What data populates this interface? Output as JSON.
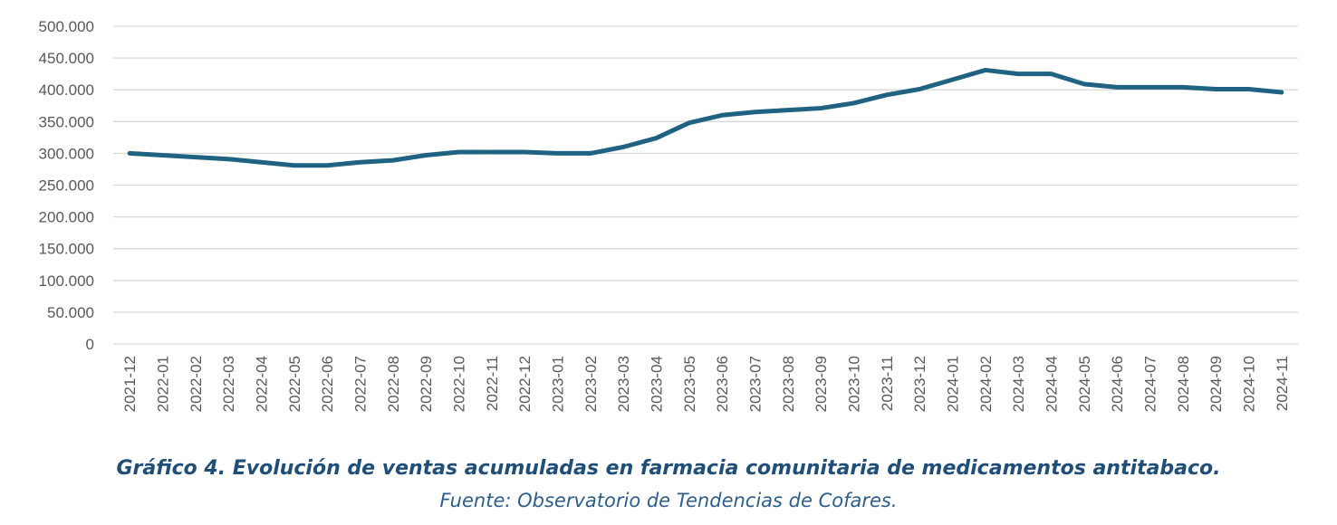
{
  "chart_data": {
    "type": "line",
    "categories": [
      "2021-12",
      "2022-01",
      "2022-02",
      "2022-03",
      "2022-04",
      "2022-05",
      "2022-06",
      "2022-07",
      "2022-08",
      "2022-09",
      "2022-10",
      "2022-11",
      "2022-12",
      "2023-01",
      "2023-02",
      "2023-03",
      "2023-04",
      "2023-05",
      "2023-06",
      "2023-07",
      "2023-08",
      "2023-09",
      "2023-10",
      "2023-11",
      "2023-12",
      "2024-01",
      "2024-02",
      "2024-03",
      "2024-04",
      "2024-05",
      "2024-06",
      "2024-07",
      "2024-08",
      "2024-09",
      "2024-10",
      "2024-11"
    ],
    "series": [
      {
        "values": [
          300000,
          297000,
          294000,
          291000,
          286000,
          281000,
          281000,
          286000,
          289000,
          297000,
          302000,
          302000,
          302000,
          300000,
          300000,
          310000,
          324000,
          348000,
          360000,
          365000,
          368000,
          371000,
          379000,
          392000,
          401000,
          416000,
          431000,
          425000,
          425000,
          409000,
          404000,
          404000,
          404000,
          401000,
          401000,
          396000
        ]
      }
    ],
    "yticks": [
      "500.000",
      "450.000",
      "400.000",
      "350.000",
      "300.000",
      "250.000",
      "200.000",
      "150.000",
      "100.000",
      "50.000",
      "0"
    ],
    "ylim": [
      0,
      500000
    ],
    "grid": true,
    "line_color": "#1F6281",
    "grid_color": "#D9D9D9"
  },
  "caption": {
    "title": "Gráfico 4. Evolución de ventas acumuladas en farmacia comunitaria de medicamentos antitabaco.",
    "source": "Fuente: Observatorio de Tendencias de Cofares."
  }
}
